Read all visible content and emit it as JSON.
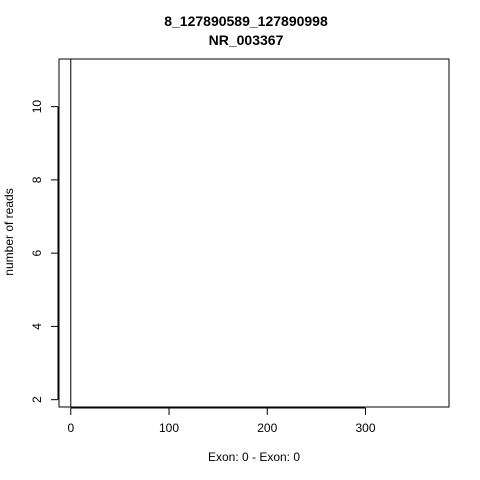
{
  "chart_data": {
    "type": "line",
    "title": "8_127890589_127890998",
    "subtitle": "NR_003367",
    "xlabel": "Exon: 0 - Exon: 0",
    "ylabel": "number of reads",
    "xlim": [
      -12,
      385
    ],
    "ylim": [
      1.8,
      11.3
    ],
    "x_ticks": [
      0,
      100,
      200,
      300
    ],
    "y_ticks": [
      2,
      4,
      6,
      8,
      10
    ],
    "grid": false,
    "series": [
      {
        "x": [
          0,
          0
        ],
        "y": [
          1.8,
          11.3
        ]
      }
    ]
  }
}
